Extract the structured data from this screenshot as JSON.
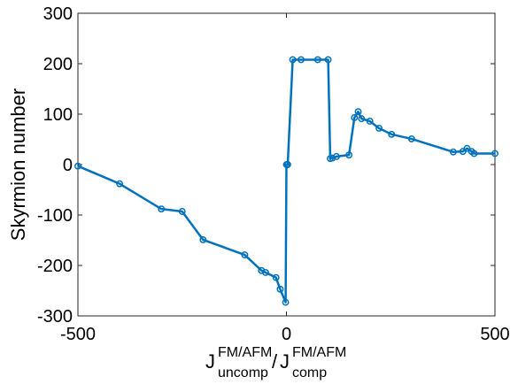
{
  "chart_data": {
    "type": "line",
    "y_label": "Skyrmion number",
    "x_label": [
      {
        "base": "J",
        "sup": "FM/AFM",
        "sub": "uncomp"
      },
      {
        "base": "/"
      },
      {
        "base": "J",
        "sup": "FM/AFM",
        "sub": "comp"
      }
    ],
    "x": [
      -500,
      -400,
      -300,
      -250,
      -200,
      -100,
      -60,
      -50,
      -25,
      -15,
      -2,
      0,
      3,
      15,
      35,
      75,
      100,
      105,
      110,
      120,
      150,
      163,
      172,
      180,
      200,
      222,
      252,
      300,
      400,
      423,
      433,
      444,
      450,
      500
    ],
    "series": [
      {
        "name": "Skyrmion number",
        "color": "#0072bd",
        "values": [
          -3,
          -38,
          -88,
          -93,
          -149,
          -179,
          -210,
          -214,
          -224,
          -247,
          -273,
          0,
          0,
          208,
          208,
          208,
          208,
          12,
          13,
          16,
          19,
          93,
          105,
          91,
          86,
          72,
          60,
          51,
          25,
          26,
          32,
          26,
          22,
          22
        ]
      }
    ],
    "xlim": [
      -500,
      500
    ],
    "xticks": [
      -500,
      0,
      500
    ],
    "ylim": [
      -300,
      300
    ],
    "yticks": [
      -300,
      -200,
      -100,
      0,
      100,
      200,
      300
    ],
    "grid": false
  }
}
